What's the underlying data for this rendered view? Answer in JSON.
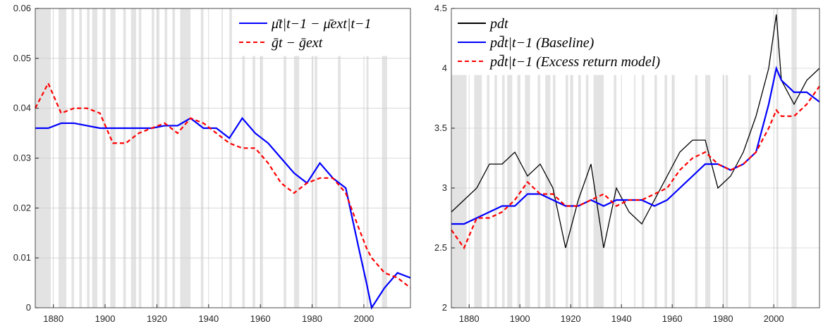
{
  "chart_data": [
    {
      "type": "line",
      "x": [
        1873,
        1878,
        1883,
        1888,
        1893,
        1898,
        1903,
        1908,
        1913,
        1918,
        1923,
        1928,
        1933,
        1938,
        1943,
        1948,
        1953,
        1958,
        1963,
        1968,
        1973,
        1978,
        1983,
        1988,
        1993,
        1998,
        2001,
        2003,
        2008,
        2013,
        2018
      ],
      "series": [
        {
          "name": "μ̄t|t−1 − μ̄ext|t−1",
          "color": "#0000ff",
          "linestyle": "solid",
          "values": [
            0.036,
            0.036,
            0.037,
            0.037,
            0.0365,
            0.036,
            0.036,
            0.036,
            0.036,
            0.036,
            0.0365,
            0.0365,
            0.038,
            0.036,
            0.036,
            0.034,
            0.038,
            0.035,
            0.033,
            0.03,
            0.027,
            0.025,
            0.029,
            0.026,
            0.024,
            0.012,
            0.005,
            0.0,
            0.004,
            0.007,
            0.006
          ]
        },
        {
          "name": "ḡt − ḡext",
          "color": "#ff0000",
          "linestyle": "dashed",
          "values": [
            0.04,
            0.045,
            0.039,
            0.04,
            0.04,
            0.039,
            0.033,
            0.033,
            0.035,
            0.036,
            0.037,
            0.035,
            0.038,
            0.037,
            0.035,
            0.033,
            0.032,
            0.032,
            0.029,
            0.025,
            0.023,
            0.025,
            0.026,
            0.026,
            0.023,
            0.016,
            0.012,
            0.01,
            0.007,
            0.006,
            0.004
          ]
        }
      ],
      "xlim": [
        1873,
        2018
      ],
      "xticks": [
        1880,
        1900,
        1920,
        1940,
        1960,
        1980,
        2000
      ],
      "ylim": [
        0,
        0.06
      ],
      "yticks": [
        0,
        0.01,
        0.02,
        0.03,
        0.04,
        0.05,
        0.06
      ],
      "grid": true,
      "legend": "upper right",
      "shade_color": "#e3e3e3",
      "shaded_periods": [
        [
          1873,
          1879
        ],
        [
          1882,
          1885
        ],
        [
          1887,
          1888
        ],
        [
          1890,
          1891
        ],
        [
          1893,
          1894
        ],
        [
          1895,
          1897
        ],
        [
          1899,
          1900
        ],
        [
          1902,
          1904
        ],
        [
          1907,
          1908
        ],
        [
          1910,
          1912
        ],
        [
          1913,
          1914
        ],
        [
          1918,
          1919
        ],
        [
          1920,
          1921
        ],
        [
          1923,
          1924
        ],
        [
          1926,
          1927
        ],
        [
          1929,
          1933
        ],
        [
          1937,
          1938
        ],
        [
          1945,
          1945.5
        ],
        [
          1948,
          1949
        ],
        [
          1953,
          1954
        ],
        [
          1957,
          1958
        ],
        [
          1960,
          1961
        ],
        [
          1969,
          1970
        ],
        [
          1973,
          1975
        ],
        [
          1980,
          1980.5
        ],
        [
          1981,
          1982
        ],
        [
          1990,
          1991
        ],
        [
          2001,
          2001.8
        ],
        [
          2007,
          2009
        ]
      ]
    },
    {
      "type": "line",
      "x": [
        1873,
        1878,
        1883,
        1888,
        1893,
        1898,
        1903,
        1908,
        1913,
        1918,
        1923,
        1928,
        1933,
        1938,
        1943,
        1948,
        1953,
        1958,
        1963,
        1968,
        1973,
        1978,
        1983,
        1988,
        1993,
        1998,
        2001,
        2003,
        2008,
        2013,
        2018
      ],
      "series": [
        {
          "name": "pdt",
          "color": "#000000",
          "linestyle": "solid",
          "values": [
            2.8,
            2.9,
            3.0,
            3.2,
            3.2,
            3.3,
            3.1,
            3.2,
            3.0,
            2.5,
            2.9,
            3.2,
            2.5,
            3.0,
            2.8,
            2.7,
            2.9,
            3.1,
            3.3,
            3.4,
            3.4,
            3.0,
            3.1,
            3.3,
            3.6,
            4.0,
            4.45,
            3.9,
            3.7,
            3.9,
            4.0
          ]
        },
        {
          "name": "pd̄t|t−1 (Baseline)",
          "color": "#0000ff",
          "linestyle": "solid",
          "values": [
            2.7,
            2.7,
            2.75,
            2.8,
            2.85,
            2.85,
            2.95,
            2.95,
            2.9,
            2.85,
            2.85,
            2.9,
            2.85,
            2.9,
            2.9,
            2.9,
            2.85,
            2.9,
            3.0,
            3.1,
            3.2,
            3.2,
            3.15,
            3.2,
            3.3,
            3.7,
            4.0,
            3.9,
            3.8,
            3.8,
            3.72
          ]
        },
        {
          "name": "pd̄t|t−1 (Excess return model)",
          "color": "#ff0000",
          "linestyle": "dashed",
          "values": [
            2.65,
            2.5,
            2.75,
            2.75,
            2.8,
            2.9,
            3.05,
            2.95,
            2.95,
            2.85,
            2.85,
            2.9,
            2.95,
            2.85,
            2.9,
            2.9,
            2.95,
            3.0,
            3.15,
            3.25,
            3.3,
            3.2,
            3.15,
            3.2,
            3.3,
            3.5,
            3.65,
            3.6,
            3.6,
            3.7,
            3.85
          ]
        }
      ],
      "xlim": [
        1873,
        2018
      ],
      "xticks": [
        1880,
        1900,
        1920,
        1940,
        1960,
        1980,
        2000
      ],
      "ylim": [
        2,
        4.5
      ],
      "yticks": [
        2,
        2.5,
        3,
        3.5,
        4,
        4.5
      ],
      "grid": true,
      "legend": "upper left",
      "shade_color": "#e3e3e3",
      "shaded_periods": [
        [
          1873,
          1879
        ],
        [
          1882,
          1885
        ],
        [
          1887,
          1888
        ],
        [
          1890,
          1891
        ],
        [
          1893,
          1894
        ],
        [
          1895,
          1897
        ],
        [
          1899,
          1900
        ],
        [
          1902,
          1904
        ],
        [
          1907,
          1908
        ],
        [
          1910,
          1912
        ],
        [
          1913,
          1914
        ],
        [
          1918,
          1919
        ],
        [
          1920,
          1921
        ],
        [
          1923,
          1924
        ],
        [
          1926,
          1927
        ],
        [
          1929,
          1933
        ],
        [
          1937,
          1938
        ],
        [
          1945,
          1945.5
        ],
        [
          1948,
          1949
        ],
        [
          1953,
          1954
        ],
        [
          1957,
          1958
        ],
        [
          1960,
          1961
        ],
        [
          1969,
          1970
        ],
        [
          1973,
          1975
        ],
        [
          1980,
          1980.5
        ],
        [
          1981,
          1982
        ],
        [
          1990,
          1991
        ],
        [
          2001,
          2001.8
        ],
        [
          2007,
          2009
        ]
      ]
    }
  ]
}
